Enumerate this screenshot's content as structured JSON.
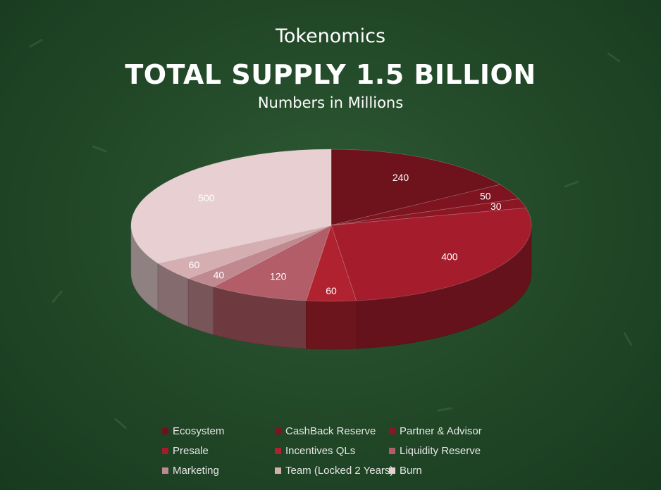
{
  "titles": {
    "heading": "Tokenomics",
    "main": "TOTAL SUPPLY 1.5 BILLION",
    "subtitle": "Numbers in Millions"
  },
  "chart_data": {
    "type": "pie",
    "style": "3d",
    "unit": "Millions",
    "categories": [
      "Ecosystem",
      "CashBack Reserve",
      "Partner & Advisor",
      "Presale",
      "Incentives QLs",
      "Liquidity Reserve",
      "Marketing",
      "Team (Locked 2 Years)",
      "Burn"
    ],
    "values": [
      240,
      50,
      30,
      400,
      60,
      120,
      40,
      60,
      500
    ],
    "colors": [
      "#6e121c",
      "#7d1420",
      "#8c1624",
      "#a51d2d",
      "#b0222f",
      "#b25d67",
      "#c08990",
      "#d5aeb2",
      "#e7cfd2"
    ],
    "legend_position": "bottom"
  }
}
